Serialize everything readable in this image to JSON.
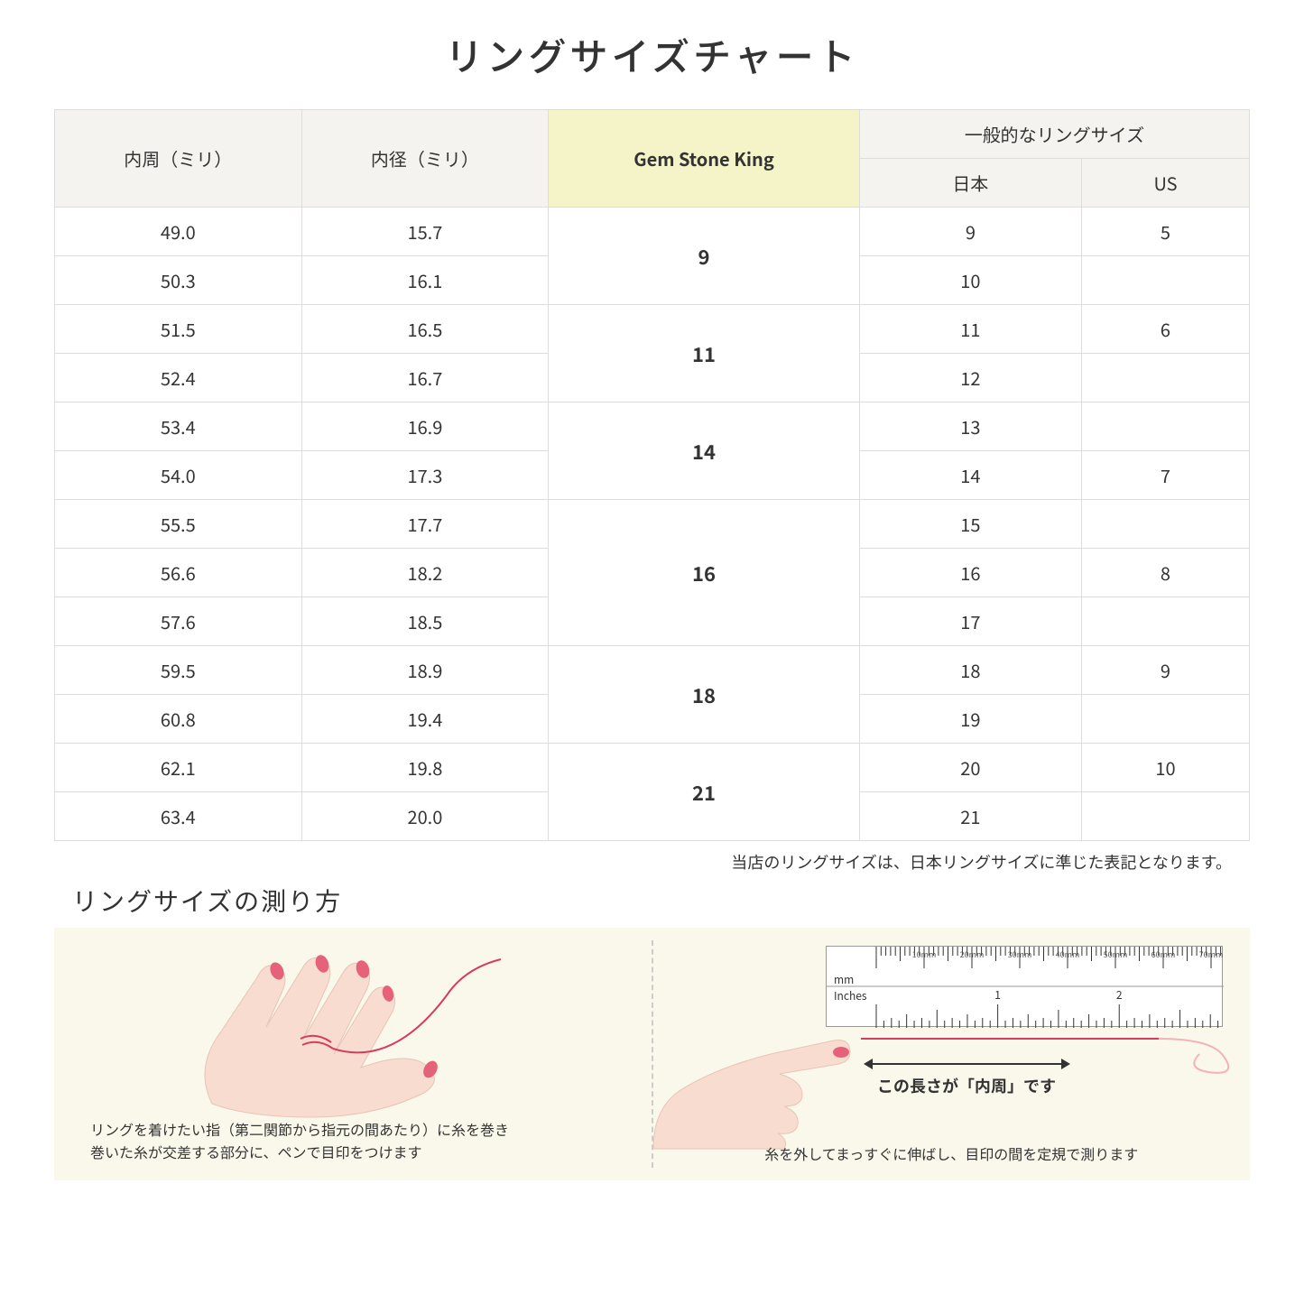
{
  "title": "リングサイズチャート",
  "table": {
    "headers": {
      "circumference": "内周（ミリ）",
      "diameter": "内径（ミリ）",
      "gsk": "Gem Stone King",
      "general": "一般的なリングサイズ",
      "japan": "日本",
      "us": "US"
    },
    "groups": [
      {
        "gsk": "9",
        "rows": [
          {
            "c": "49.0",
            "d": "15.7",
            "jp": "9",
            "us": "5"
          },
          {
            "c": "50.3",
            "d": "16.1",
            "jp": "10",
            "us": ""
          }
        ]
      },
      {
        "gsk": "11",
        "rows": [
          {
            "c": "51.5",
            "d": "16.5",
            "jp": "11",
            "us": "6"
          },
          {
            "c": "52.4",
            "d": "16.7",
            "jp": "12",
            "us": ""
          }
        ]
      },
      {
        "gsk": "14",
        "rows": [
          {
            "c": "53.4",
            "d": "16.9",
            "jp": "13",
            "us": ""
          },
          {
            "c": "54.0",
            "d": "17.3",
            "jp": "14",
            "us": "7"
          }
        ]
      },
      {
        "gsk": "16",
        "rows": [
          {
            "c": "55.5",
            "d": "17.7",
            "jp": "15",
            "us": ""
          },
          {
            "c": "56.6",
            "d": "18.2",
            "jp": "16",
            "us": "8"
          },
          {
            "c": "57.6",
            "d": "18.5",
            "jp": "17",
            "us": ""
          }
        ]
      },
      {
        "gsk": "18",
        "rows": [
          {
            "c": "59.5",
            "d": "18.9",
            "jp": "18",
            "us": "9"
          },
          {
            "c": "60.8",
            "d": "19.4",
            "jp": "19",
            "us": ""
          }
        ]
      },
      {
        "gsk": "21",
        "rows": [
          {
            "c": "62.1",
            "d": "19.8",
            "jp": "20",
            "us": "10"
          },
          {
            "c": "63.4",
            "d": "20.0",
            "jp": "21",
            "us": ""
          }
        ]
      }
    ],
    "note": "当店のリングサイズは、日本リングサイズに準じた表記となります。"
  },
  "measure": {
    "subtitle": "リングサイズの測り方",
    "left_caption": "リングを着けたい指（第二関節から指元の間あたり）に糸を巻き\n巻いた糸が交差する部分に、ペンで目印をつけます",
    "right_caption": "糸を外してまっすぐに伸ばし、目印の間を定規で測ります",
    "arrow_label": "この長さが「内周」です",
    "ruler": {
      "mm_label": "mm",
      "in_label": "Inches",
      "mm_marks": [
        "10mm",
        "20mm",
        "30mm",
        "40mm",
        "50mm",
        "60mm",
        "70mm"
      ],
      "in_marks": [
        "1",
        "2"
      ]
    }
  },
  "colors": {
    "header_gray": "#f5f3ef",
    "header_yellow": "#f5f3c8",
    "panel_bg": "#faf8ea",
    "skin": "#f8dcd0",
    "nail": "#e6617a",
    "thread": "#d63c5e",
    "border": "#dddddd"
  }
}
